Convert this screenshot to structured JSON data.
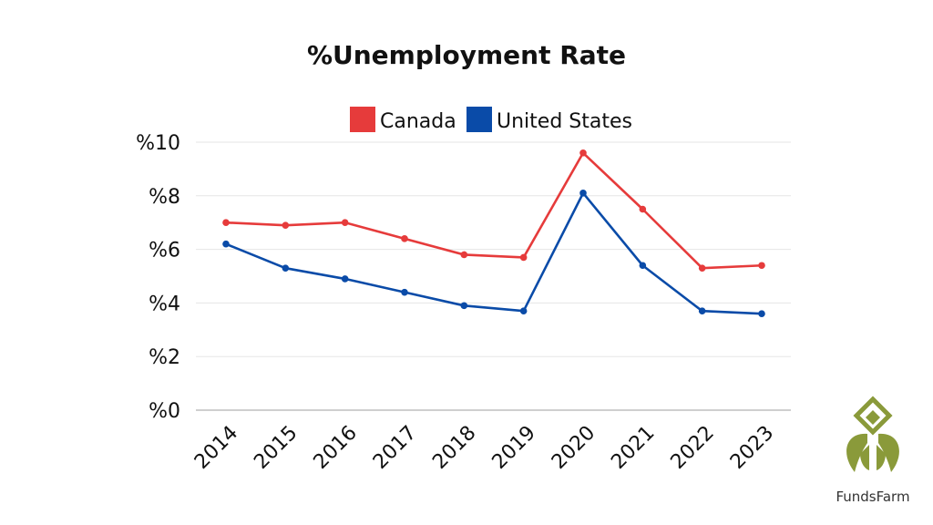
{
  "chart_data": {
    "type": "line",
    "title": "%Unemployment Rate",
    "categories": [
      "2014",
      "2015",
      "2016",
      "2017",
      "2018",
      "2019",
      "2020",
      "2021",
      "2022",
      "2023"
    ],
    "series": [
      {
        "name": "Canada",
        "color": "#e63b3b",
        "values": [
          7.0,
          6.9,
          7.0,
          6.4,
          5.8,
          5.7,
          9.6,
          7.5,
          5.3,
          5.4
        ]
      },
      {
        "name": "United States",
        "color": "#0a4ba8",
        "values": [
          6.2,
          5.3,
          4.9,
          4.4,
          3.9,
          3.7,
          8.1,
          5.4,
          3.7,
          3.6
        ]
      }
    ],
    "yticks": [
      {
        "value": 0,
        "label": "%0"
      },
      {
        "value": 2,
        "label": "%2"
      },
      {
        "value": 4,
        "label": "%4"
      },
      {
        "value": 6,
        "label": "%6"
      },
      {
        "value": 8,
        "label": "%8"
      },
      {
        "value": 10,
        "label": "%10"
      }
    ],
    "ylim": [
      0,
      10
    ],
    "xlabel": "",
    "ylabel": "",
    "grid": true,
    "legend_position": "top-center"
  },
  "branding": {
    "logo_icon": "leaf-logo-icon",
    "logo_text": "FundsFarm",
    "logo_color": "#8a9a3a"
  }
}
